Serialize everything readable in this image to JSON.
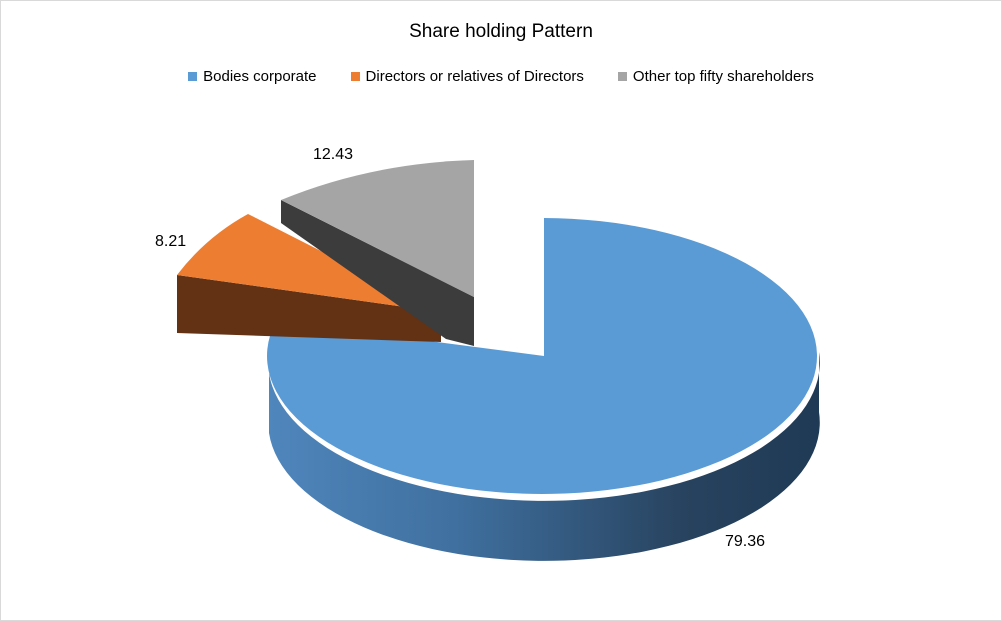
{
  "chart_data": {
    "type": "pie",
    "title": "Share holding Pattern",
    "legend_position": "top",
    "slices": [
      {
        "name": "Bodies corporate",
        "value": 79.36,
        "label": "79.36",
        "color": "#5b9bd5"
      },
      {
        "name": "Directors or relatives of Directors",
        "value": 8.21,
        "label": "8.21",
        "color": "#ed7d31"
      },
      {
        "name": "Other top fifty shareholders",
        "value": 12.43,
        "label": "12.43",
        "color": "#a5a5a5"
      }
    ]
  }
}
